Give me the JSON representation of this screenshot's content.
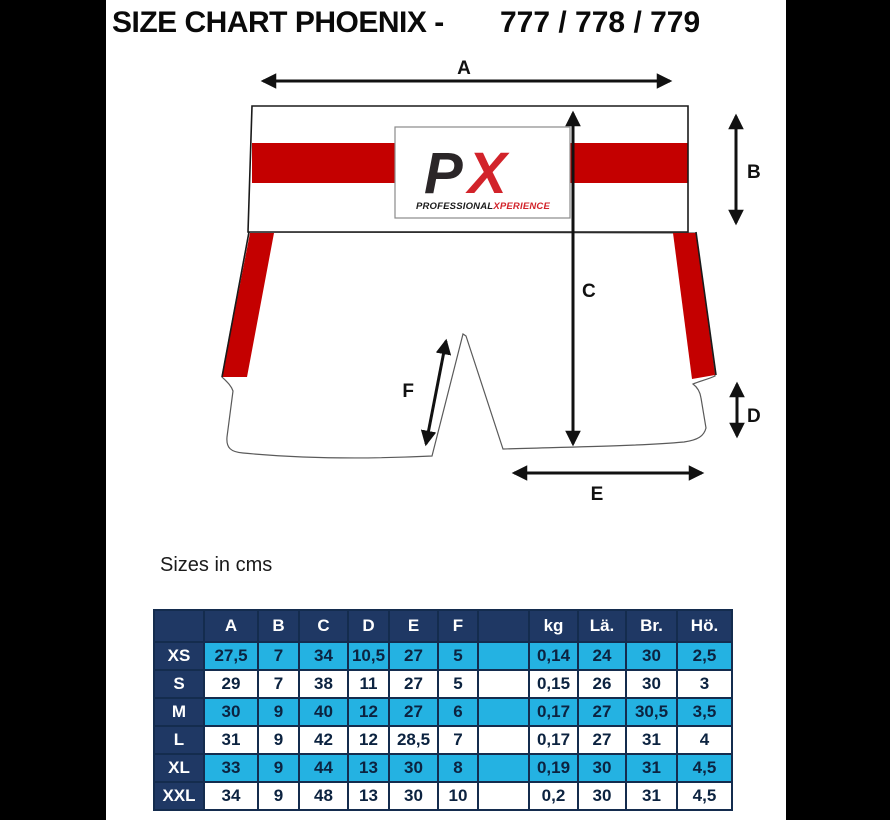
{
  "title": {
    "main": "SIZE CHART PHOENIX -",
    "models": "777 / 778 / 779"
  },
  "sizes_note": "Sizes in cms",
  "diagram": {
    "labels": {
      "A": "A",
      "B": "B",
      "C": "C",
      "D": "D",
      "E": "E",
      "F": "F"
    },
    "logo": {
      "p": "P",
      "x": "X",
      "caption_black": "PROFESSIONAL",
      "caption_red": "XPERIENCE"
    },
    "colors": {
      "red": "#c40000",
      "logo_dark": "#2b2628",
      "logo_red": "#d2232a",
      "outline": "#1a1a1a",
      "leg_outline": "#5a5a5a"
    }
  },
  "chart_data": {
    "type": "table",
    "title": "SIZE CHART PHOENIX - 777 / 778 / 779",
    "unit": "Sizes in cms",
    "columns": [
      "",
      "A",
      "B",
      "C",
      "D",
      "E",
      "F",
      "",
      "kg",
      "Lä.",
      "Br.",
      "Hö."
    ],
    "rows": [
      {
        "label": "XS",
        "highlight": true,
        "values": [
          "27,5",
          "7",
          "34",
          "10,5",
          "27",
          "5",
          "",
          "0,14",
          "24",
          "30",
          "2,5"
        ]
      },
      {
        "label": "S",
        "highlight": false,
        "values": [
          "29",
          "7",
          "38",
          "11",
          "27",
          "5",
          "",
          "0,15",
          "26",
          "30",
          "3"
        ]
      },
      {
        "label": "M",
        "highlight": true,
        "values": [
          "30",
          "9",
          "40",
          "12",
          "27",
          "6",
          "",
          "0,17",
          "27",
          "30,5",
          "3,5"
        ]
      },
      {
        "label": "L",
        "highlight": false,
        "values": [
          "31",
          "9",
          "42",
          "12",
          "28,5",
          "7",
          "",
          "0,17",
          "27",
          "31",
          "4"
        ]
      },
      {
        "label": "XL",
        "highlight": true,
        "values": [
          "33",
          "9",
          "44",
          "13",
          "30",
          "8",
          "",
          "0,19",
          "30",
          "31",
          "4,5"
        ]
      },
      {
        "label": "XXL",
        "highlight": false,
        "values": [
          "34",
          "9",
          "48",
          "13",
          "30",
          "10",
          "",
          "0,2",
          "30",
          "31",
          "4,5"
        ]
      }
    ],
    "colors": {
      "header_bg": "#1f3864",
      "header_text": "#ffffff",
      "highlight_bg": "#24b2e2",
      "row_bg": "#ffffff",
      "border": "#142c4e",
      "cell_text": "#0c2340"
    }
  }
}
